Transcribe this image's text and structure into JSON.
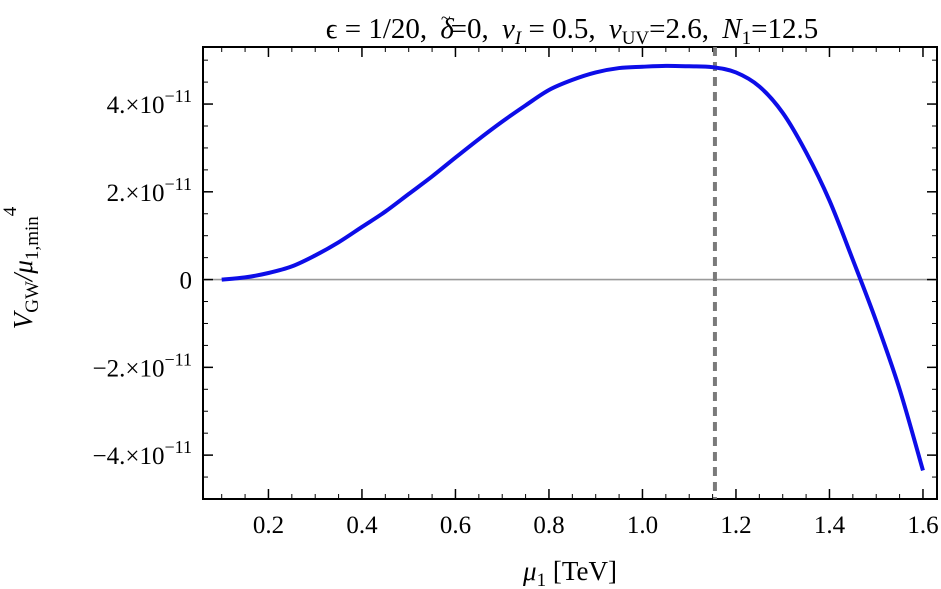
{
  "chart_data": {
    "type": "line",
    "title": "ϵ = 1/20, δ̃=0, v_I = 0.5, v_UV=2.6, N_1=12.5",
    "title_parts": {
      "epsilon": "ϵ = 1/20,",
      "delta_sym": "δ",
      "delta_tilde": "~",
      "delta_val": "=0,",
      "vI": "v",
      "vI_sub": "I",
      "vI_val": " = 0.5,",
      "vUV": "v",
      "vUV_sub": "UV",
      "vUV_val": "=2.6,",
      "N": "N",
      "N_sub": "1",
      "N_val": "=12.5"
    },
    "xlabel": "μ1 [TeV]",
    "xlabel_parts": {
      "mu": "μ",
      "sub": "1",
      "unit": " [TeV]"
    },
    "ylabel": "V_GW/μ_{1,min}^4",
    "ylabel_parts": {
      "V": "V",
      "V_sub": "GW",
      "slash": "/μ",
      "mu_sub": "1,min",
      "sup": "4"
    },
    "xlim": [
      0.06,
      1.63
    ],
    "ylim": [
      -5e-11,
      5.3e-11
    ],
    "x_ticks": [
      0.2,
      0.4,
      0.6,
      0.8,
      1.0,
      1.2,
      1.4,
      1.6
    ],
    "x_tick_labels": [
      "0.2",
      "0.4",
      "0.6",
      "0.8",
      "1.0",
      "1.2",
      "1.4",
      "1.6"
    ],
    "y_ticks": [
      -4e-11,
      -2e-11,
      0,
      2e-11,
      4e-11
    ],
    "y_tick_labels": [
      {
        "mant": "−4.",
        "base": "×10",
        "exp": "−11"
      },
      {
        "mant": "−2.",
        "base": "×10",
        "exp": "−11"
      },
      {
        "mant": "0",
        "base": "",
        "exp": ""
      },
      {
        "mant": "2.",
        "base": "×10",
        "exp": "−11"
      },
      {
        "mant": "4.",
        "base": "×10",
        "exp": "−11"
      }
    ],
    "vertical_line_x": 1.155,
    "grid": false,
    "series": [
      {
        "color": "#0d0de8",
        "x": [
          0.1,
          0.15,
          0.2,
          0.25,
          0.3,
          0.35,
          0.4,
          0.45,
          0.5,
          0.55,
          0.6,
          0.65,
          0.7,
          0.75,
          0.8,
          0.85,
          0.9,
          0.95,
          1.0,
          1.05,
          1.1,
          1.15,
          1.2,
          1.25,
          1.3,
          1.35,
          1.4,
          1.45,
          1.5,
          1.55,
          1.6
        ],
        "y": [
          0.0,
          5e-13,
          1.5e-12,
          3e-12,
          5.5e-12,
          8.5e-12,
          1.2e-11,
          1.55e-11,
          1.95e-11,
          2.35e-11,
          2.78e-11,
          3.2e-11,
          3.6e-11,
          3.97e-11,
          4.32e-11,
          4.55e-11,
          4.72e-11,
          4.82e-11,
          4.85e-11,
          4.87e-11,
          4.86e-11,
          4.84e-11,
          4.72e-11,
          4.4e-11,
          3.8e-11,
          2.9e-11,
          1.8e-11,
          4.5e-12,
          -9.5e-12,
          -2.5e-11,
          -4.35e-11
        ]
      }
    ]
  },
  "colors": {
    "curve": "#0d0de8",
    "zero_line": "#9a9a9a",
    "vline": "#7a7a7a",
    "frame": "#000000"
  }
}
